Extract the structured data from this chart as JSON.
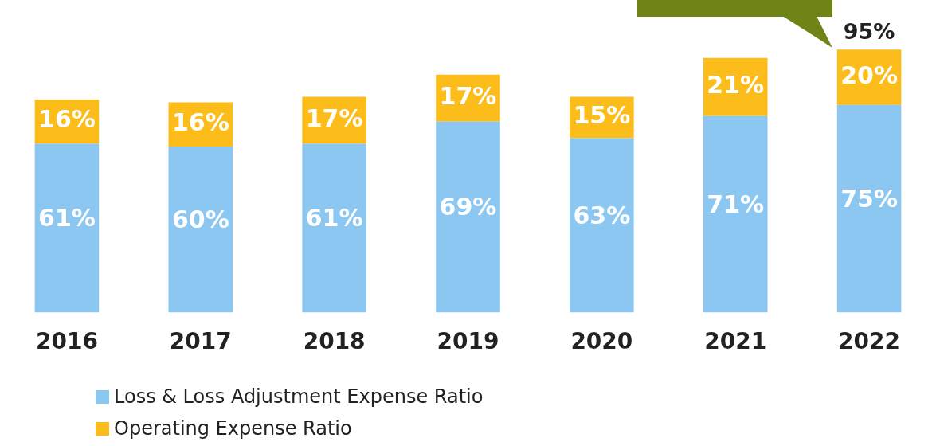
{
  "chart_data": {
    "type": "bar",
    "stacked": true,
    "categories": [
      "2016",
      "2017",
      "2018",
      "2019",
      "2020",
      "2021",
      "2022"
    ],
    "series": [
      {
        "name": "Loss & Loss Adjustment Expense Ratio",
        "color": "#8cc7f2",
        "values": [
          61,
          60,
          61,
          69,
          63,
          71,
          75
        ],
        "value_labels": [
          "61%",
          "60%",
          "61%",
          "69%",
          "63%",
          "71%",
          "75%"
        ]
      },
      {
        "name": "Operating Expense Ratio",
        "color": "#fcbd1b",
        "values": [
          16,
          16,
          17,
          17,
          15,
          21,
          20
        ],
        "value_labels": [
          "16%",
          "16%",
          "17%",
          "17%",
          "15%",
          "21%",
          "20%"
        ]
      }
    ],
    "totals": [
      null,
      null,
      null,
      null,
      null,
      null,
      "95%"
    ],
    "legend": "bottom left",
    "grid": false,
    "tick_labels": "x"
  }
}
